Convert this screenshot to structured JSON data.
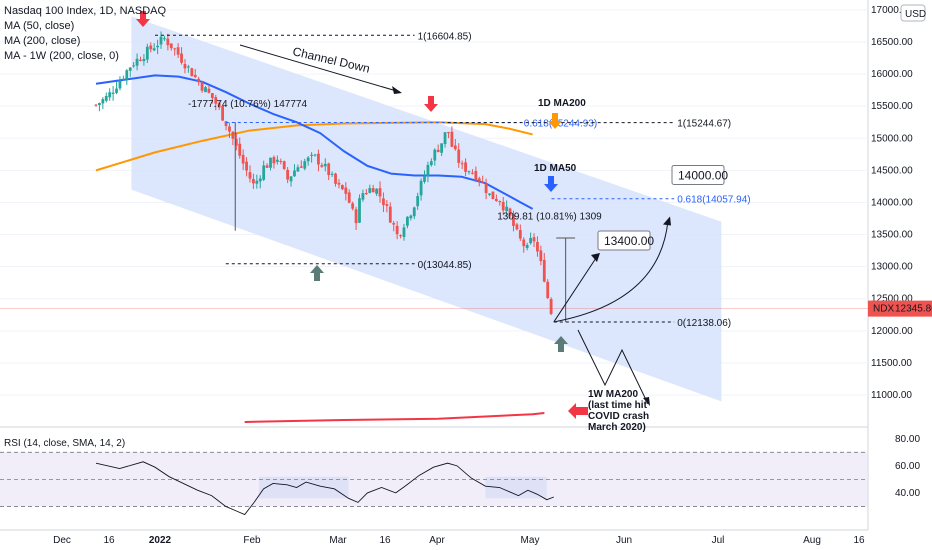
{
  "title": "Nasdaq 100 Index, 1D, NASDAQ",
  "legend": [
    "MA (50, close)",
    "MA (200, close)",
    "MA - 1W (200, close, 0)"
  ],
  "currency": "USD",
  "colors": {
    "up": "#26a69a",
    "down": "#ef5350",
    "ma50": "#2962ff",
    "ma200": "#ff9800",
    "ma1w": "#f23645",
    "channel": "#d6e2fb",
    "rsi": "#7e57c2",
    "rsi_band": "#e8e2f5",
    "arrow_red": "#f23645",
    "arrow_blue": "#2962ff",
    "arrow_orange": "#ff9800",
    "arrow_green": "#5b7b76"
  },
  "chart_data": {
    "type": "candlestick",
    "title": "Nasdaq 100 Index, 1D, NASDAQ",
    "ylim": [
      10500,
      17000
    ],
    "y_ticks": [
      10500,
      11000,
      11500,
      12000,
      12500,
      13000,
      13500,
      14000,
      14500,
      15000,
      15500,
      16000,
      16500,
      17000
    ],
    "y_tick_labels": [
      "10500.00",
      "11000.00",
      "11500.00",
      "12000.00",
      "12500.00",
      "13000.00",
      "13500.00",
      "14000.00",
      "14500.00",
      "15000.00",
      "15500.00",
      "16000.00",
      "16500.00",
      "17000.00"
    ],
    "x_tick_labels": [
      "Dec",
      "16",
      "2022",
      "Feb",
      "Mar",
      "16",
      "Apr",
      "May",
      "Jun",
      "Jul",
      "Aug",
      "16"
    ],
    "last_price": {
      "symbol": "NDX",
      "value": "12345.86"
    },
    "close_path": [
      [
        -25,
        15520
      ],
      [
        -20,
        15650
      ],
      [
        -15,
        15900
      ],
      [
        -10,
        16150
      ],
      [
        -5,
        16300
      ],
      [
        0,
        16450
      ],
      [
        4,
        16550
      ],
      [
        8,
        16400
      ],
      [
        13,
        16150
      ],
      [
        19,
        15850
      ],
      [
        25,
        15600
      ],
      [
        30,
        15250
      ],
      [
        34,
        14900
      ],
      [
        38,
        14550
      ],
      [
        42,
        14250
      ],
      [
        46,
        14550
      ],
      [
        52,
        14700
      ],
      [
        56,
        14350
      ],
      [
        60,
        14550
      ],
      [
        64,
        14650
      ],
      [
        68,
        14700
      ],
      [
        73,
        14500
      ],
      [
        77,
        14250
      ],
      [
        81,
        14150
      ],
      [
        85,
        13700
      ],
      [
        86,
        13950
      ],
      [
        88,
        14150
      ],
      [
        93,
        14250
      ],
      [
        97,
        14000
      ],
      [
        101,
        13650
      ],
      [
        103,
        13450
      ],
      [
        105,
        13650
      ],
      [
        109,
        13900
      ],
      [
        113,
        14300
      ],
      [
        117,
        14700
      ],
      [
        121,
        14900
      ],
      [
        124,
        15150
      ],
      [
        126,
        14850
      ],
      [
        130,
        14550
      ],
      [
        134,
        14500
      ],
      [
        138,
        14350
      ],
      [
        142,
        14100
      ],
      [
        146,
        14050
      ],
      [
        150,
        13800
      ],
      [
        154,
        13450
      ],
      [
        158,
        13250
      ],
      [
        160,
        13500
      ],
      [
        163,
        13100
      ],
      [
        166,
        12700
      ],
      [
        167,
        12240
      ],
      [
        169,
        12345.86
      ]
    ],
    "ma50": [
      [
        -25,
        15850
      ],
      [
        0,
        15980
      ],
      [
        10,
        15960
      ],
      [
        20,
        15880
      ],
      [
        30,
        15720
      ],
      [
        40,
        15540
      ],
      [
        50,
        15380
      ],
      [
        60,
        15250
      ],
      [
        70,
        15080
      ],
      [
        80,
        14800
      ],
      [
        90,
        14570
      ],
      [
        100,
        14450
      ],
      [
        110,
        14420
      ],
      [
        120,
        14420
      ],
      [
        130,
        14400
      ],
      [
        140,
        14300
      ],
      [
        150,
        14100
      ],
      [
        155,
        14000
      ],
      [
        160,
        13900
      ]
    ],
    "ma200": [
      [
        -25,
        14500
      ],
      [
        0,
        14780
      ],
      [
        20,
        14960
      ],
      [
        40,
        15120
      ],
      [
        60,
        15200
      ],
      [
        80,
        15230
      ],
      [
        100,
        15240
      ],
      [
        120,
        15250
      ],
      [
        140,
        15220
      ],
      [
        150,
        15150
      ],
      [
        160,
        15060
      ]
    ],
    "ma1w": [
      [
        38,
        10580
      ],
      [
        80,
        10610
      ],
      [
        120,
        10630
      ],
      [
        160,
        10700
      ],
      [
        165,
        10720
      ]
    ],
    "channel": [
      [
        -10,
        16900
      ],
      [
        -10,
        14200
      ],
      [
        240,
        10900
      ],
      [
        240,
        13700
      ]
    ],
    "channel_label": "Channel Down",
    "levels": [
      {
        "label": "1(16604.85)",
        "value": 16604.85,
        "x0": 0,
        "x1": 110
      },
      {
        "label": "0.618(15244.93)",
        "value": 15244.93,
        "x0": 30,
        "x1": 155
      },
      {
        "label": "1(15244.67)",
        "value": 15244.67,
        "x0": 124,
        "x1": 220
      },
      {
        "label": "0(13044.85)",
        "value": 13044.85,
        "x0": 30,
        "x1": 110
      },
      {
        "label": "0.618(14057.94)",
        "value": 14057.94,
        "x0": 168,
        "x1": 220
      },
      {
        "label": "0(12138.06)",
        "value": 12138.06,
        "x0": 169,
        "x1": 220
      }
    ],
    "measure_labels": [
      "-1777.74 (10.76%) 147774",
      "1309.81 (10.81%) 1309"
    ],
    "projections": [
      {
        "label": "13400.00",
        "value": 13400
      },
      {
        "label": "14000.00",
        "value": 14000
      }
    ],
    "labels": [
      "1D MA200",
      "1D MA50",
      "1W MA200",
      "(last time hit",
      "COVID crash",
      "March 2020)"
    ],
    "rsi": {
      "label": "RSI (14, close, SMA, 14, 2)",
      "ylim": [
        20,
        85
      ],
      "ticks": [
        40,
        60,
        80
      ],
      "tick_labels": [
        "40.00",
        "60.00",
        "80.00"
      ],
      "levels": [
        70,
        50,
        30
      ],
      "values": [
        [
          -25,
          62
        ],
        [
          -15,
          58
        ],
        [
          -5,
          63
        ],
        [
          0,
          59
        ],
        [
          6,
          52
        ],
        [
          12,
          47
        ],
        [
          18,
          42
        ],
        [
          24,
          38
        ],
        [
          30,
          30
        ],
        [
          34,
          27
        ],
        [
          38,
          24
        ],
        [
          42,
          33
        ],
        [
          46,
          43
        ],
        [
          50,
          47
        ],
        [
          56,
          46
        ],
        [
          60,
          44
        ],
        [
          64,
          48
        ],
        [
          70,
          45
        ],
        [
          76,
          43
        ],
        [
          82,
          36
        ],
        [
          86,
          33
        ],
        [
          90,
          40
        ],
        [
          96,
          44
        ],
        [
          102,
          40
        ],
        [
          106,
          45
        ],
        [
          112,
          53
        ],
        [
          118,
          59
        ],
        [
          124,
          62
        ],
        [
          128,
          60
        ],
        [
          134,
          51
        ],
        [
          140,
          45
        ],
        [
          146,
          44
        ],
        [
          150,
          41
        ],
        [
          154,
          38
        ],
        [
          158,
          42
        ],
        [
          162,
          39
        ],
        [
          166,
          35
        ],
        [
          169,
          37
        ]
      ],
      "bands": [
        [
          44,
          82
        ],
        [
          140,
          166
        ]
      ]
    }
  }
}
